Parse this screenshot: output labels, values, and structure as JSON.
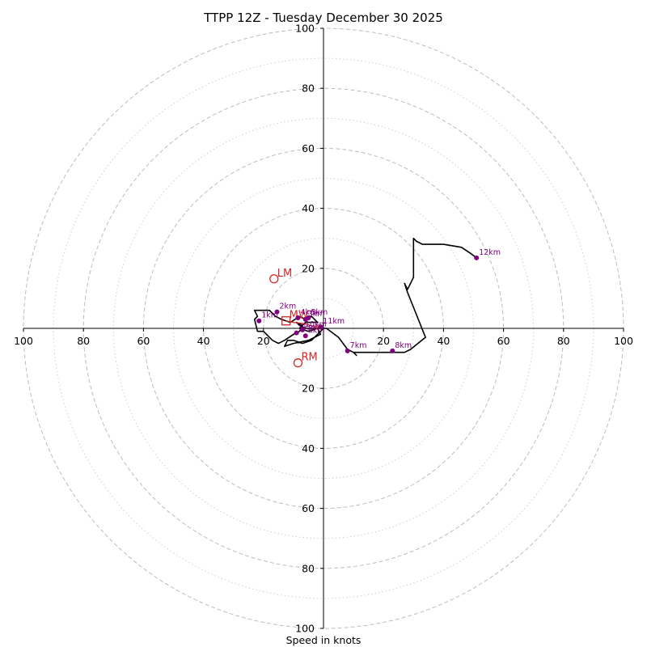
{
  "colors": {
    "trace": "#000000",
    "height_marker": "#800080",
    "motion": "#d62728",
    "ring_major": "#bdbdbd",
    "ring_minor": "#cfcfcf"
  },
  "chart_data": {
    "type": "hodograph",
    "title": "TTPP 12Z - Tuesday December 30 2025",
    "xlabel": "Speed in knots",
    "speed_max": 100,
    "major_rings": [
      20,
      40,
      60,
      80,
      100
    ],
    "minor_rings": [
      10,
      30,
      50,
      70,
      90
    ],
    "tick_values": [
      20,
      40,
      60,
      80,
      100
    ],
    "tick_labels": [
      "20",
      "40",
      "60",
      "80",
      "100"
    ],
    "hodograph_uv": [
      [
        0,
        0
      ],
      [
        -1,
        -1
      ],
      [
        -4,
        -4
      ],
      [
        -7,
        -5
      ],
      [
        -10,
        -4
      ],
      [
        -12,
        -4
      ],
      [
        -13,
        -6
      ],
      [
        -10,
        -5
      ],
      [
        -5,
        -4
      ],
      [
        -1,
        -2
      ],
      [
        -2,
        0
      ],
      [
        -6,
        0
      ],
      [
        -8,
        1
      ],
      [
        -9,
        2
      ],
      [
        -7,
        1
      ],
      [
        -8,
        -1
      ],
      [
        -10,
        -2
      ],
      [
        -13,
        -4
      ],
      [
        -15,
        -5
      ],
      [
        -17,
        -4
      ],
      [
        -20,
        -1
      ],
      [
        -22,
        -1
      ],
      [
        -23,
        3
      ],
      [
        -22,
        4
      ],
      [
        -23,
        6
      ],
      [
        -18,
        6
      ],
      [
        -16,
        4
      ],
      [
        -14,
        3
      ],
      [
        -11,
        2
      ],
      [
        -8,
        4
      ],
      [
        -6,
        3
      ],
      [
        -4,
        4
      ],
      [
        -2,
        2
      ],
      [
        -6,
        2
      ],
      [
        -8,
        0
      ],
      [
        -5,
        -1
      ],
      [
        -2,
        0
      ],
      [
        0,
        0
      ],
      [
        1,
        0
      ],
      [
        5,
        -3
      ],
      [
        8,
        -7
      ],
      [
        10,
        -8
      ],
      [
        11,
        -9
      ],
      [
        10,
        -8
      ],
      [
        12,
        -8
      ],
      [
        20,
        -8
      ],
      [
        27,
        -8
      ],
      [
        29,
        -7
      ],
      [
        34,
        -3
      ],
      [
        32,
        2
      ],
      [
        30,
        7
      ],
      [
        28,
        12
      ],
      [
        27,
        15
      ],
      [
        28,
        13
      ],
      [
        30,
        17
      ],
      [
        30,
        21
      ],
      [
        30,
        30
      ],
      [
        31,
        29
      ],
      [
        33,
        28
      ],
      [
        40,
        28
      ],
      [
        46,
        27
      ],
      [
        49,
        25
      ],
      [
        51,
        23.5
      ]
    ],
    "height_labels": [
      {
        "label": "1km",
        "u": -21.5,
        "v": 2.5
      },
      {
        "label": "2km",
        "u": -15.5,
        "v": 5.5
      },
      {
        "label": "3km",
        "u": -6,
        "v": 3
      },
      {
        "label": "4km",
        "u": -8.5,
        "v": 3.5
      },
      {
        "label": "5km",
        "u": -5,
        "v": 3.5
      },
      {
        "label": "6km",
        "u": -6,
        "v": -2.5
      },
      {
        "label": "7km",
        "u": 8,
        "v": -7.5
      },
      {
        "label": "8km",
        "u": 23,
        "v": -7.5
      },
      {
        "label": "12km",
        "u": 51,
        "v": 23.5
      },
      {
        "label": "9km",
        "u": -9,
        "v": -1.5
      },
      {
        "label": "10km",
        "u": -7,
        "v": -0.5
      },
      {
        "label": "11km",
        "u": -1,
        "v": 0.5
      }
    ],
    "storm_motion": {
      "LM": {
        "label": "LM",
        "u": -16.5,
        "v": 16.5
      },
      "RM": {
        "label": "RM",
        "u": -8.5,
        "v": -11.5
      },
      "MW": {
        "label": "MW",
        "u": -12.5,
        "v": 2.5
      },
      "vector_end": {
        "u": -1,
        "v": 0.5
      },
      "end_label": "0",
      "arrow_uv": [
        [
          -12.5,
          2.5
        ],
        [
          -10,
          2
        ],
        [
          -6,
          1.5
        ],
        [
          -3,
          0.5
        ],
        [
          -1,
          0.5
        ]
      ]
    }
  }
}
